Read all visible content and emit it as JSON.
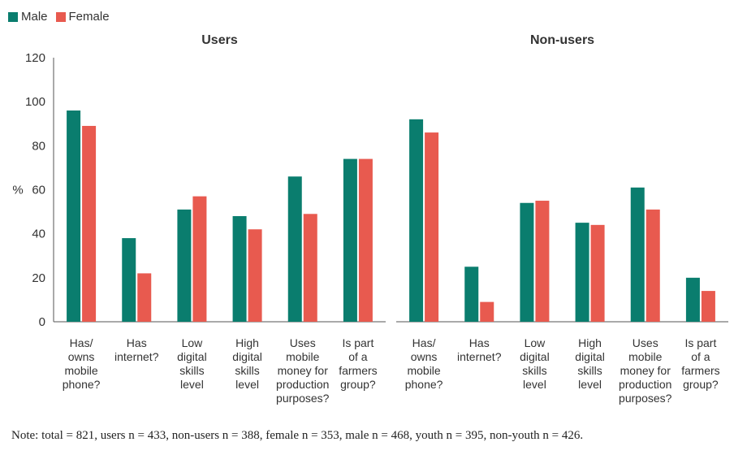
{
  "chart_data": [
    {
      "type": "bar",
      "title": "Users",
      "ylabel": "%",
      "ylim": [
        0,
        120
      ],
      "yticks": [
        0,
        20,
        40,
        60,
        80,
        100,
        120
      ],
      "categories": [
        [
          "Has/",
          "owns",
          "mobile",
          "phone?"
        ],
        [
          "Has",
          "internet?"
        ],
        [
          "Low",
          "digital",
          "skills",
          "level"
        ],
        [
          "High",
          "digital",
          "skills",
          "level"
        ],
        [
          "Uses",
          "mobile",
          "money for",
          "production",
          "purposes?"
        ],
        [
          "Is part",
          "of a",
          "farmers",
          "group?"
        ]
      ],
      "series": [
        {
          "name": "Male",
          "values": [
            96,
            38,
            51,
            48,
            66,
            74
          ]
        },
        {
          "name": "Female",
          "values": [
            89,
            22,
            57,
            42,
            49,
            74
          ]
        }
      ]
    },
    {
      "type": "bar",
      "title": "Non-users",
      "ylim": [
        0,
        120
      ],
      "categories": [
        [
          "Has/",
          "owns",
          "mobile",
          "phone?"
        ],
        [
          "Has",
          "internet?"
        ],
        [
          "Low",
          "digital",
          "skills",
          "level"
        ],
        [
          "High",
          "digital",
          "skills",
          "level"
        ],
        [
          "Uses",
          "mobile",
          "money for",
          "production",
          "purposes?"
        ],
        [
          "Is part",
          "of a",
          "farmers",
          "group?"
        ]
      ],
      "series": [
        {
          "name": "Male",
          "values": [
            92,
            25,
            54,
            45,
            61,
            20
          ]
        },
        {
          "name": "Female",
          "values": [
            86,
            9,
            55,
            44,
            51,
            14
          ]
        }
      ]
    }
  ],
  "legend": {
    "placement": "top-left",
    "items": [
      {
        "label": "Male",
        "color": "#0a7d6e"
      },
      {
        "label": "Female",
        "color": "#e85a4f"
      }
    ]
  },
  "note": "Note: total = 821, users n = 433, non-users n = 388, female n = 353, male n = 468, youth n = 395, non-youth n = 426."
}
